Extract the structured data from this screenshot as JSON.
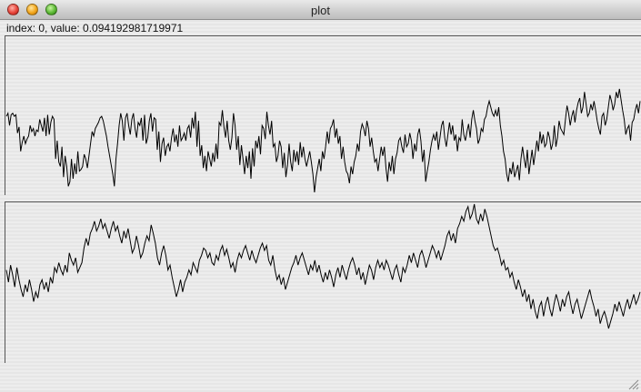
{
  "window": {
    "title": "plot",
    "controls": {
      "close": "close-button",
      "minimize": "minimize-button",
      "zoom": "zoom-button"
    }
  },
  "status": {
    "text": "index: 0, value: 0.094192981719971"
  },
  "plots": {
    "top": {
      "series": [
        0.08,
        0.1,
        0.02,
        0.09,
        0.1,
        0.08,
        0.09,
        -0.03,
        0.01,
        -0.15,
        -0.09,
        -0.05,
        -0.1,
        -0.07,
        -0.05,
        0.02,
        -0.02,
        0.0,
        -0.05,
        -0.01,
        -0.02,
        0.06,
        0.02,
        -0.02,
        0.07,
        -0.05,
        0.09,
        -0.04,
        0.04,
        0.08,
        0.06,
        -0.2,
        -0.08,
        -0.22,
        -0.25,
        -0.12,
        -0.32,
        -0.18,
        -0.25,
        -0.38,
        -0.35,
        -0.2,
        -0.33,
        -0.23,
        -0.3,
        -0.15,
        -0.28,
        -0.27,
        -0.25,
        -0.17,
        -0.2,
        -0.26,
        -0.18,
        -0.1,
        -0.02,
        -0.05,
        0.0,
        0.02,
        0.04,
        0.07,
        0.08,
        0.05,
        0.0,
        -0.05,
        -0.12,
        -0.18,
        -0.24,
        -0.3,
        -0.38,
        -0.2,
        -0.1,
        0.02,
        0.1,
        0.05,
        -0.08,
        0.07,
        0.1,
        0.02,
        -0.04,
        0.06,
        0.1,
        0.0,
        -0.06,
        0.04,
        0.02,
        0.07,
        -0.08,
        0.09,
        -0.1,
        -0.06,
        0.05,
        0.1,
        -0.02,
        0.07,
        0.06,
        -0.14,
        -0.02,
        -0.22,
        -0.1,
        -0.06,
        -0.18,
        -0.12,
        -0.1,
        -0.15,
        -0.06,
        0.0,
        -0.09,
        -0.04,
        -0.12,
        0.02,
        -0.08,
        -0.06,
        -0.03,
        -0.08,
        0.0,
        0.02,
        -0.06,
        0.07,
        0.0,
        0.11,
        -0.12,
        0.05,
        -0.18,
        -0.11,
        -0.26,
        -0.18,
        -0.28,
        -0.15,
        -0.2,
        -0.25,
        -0.16,
        -0.22,
        -0.1,
        -0.2,
        0.04,
        0.02,
        0.12,
        0.01,
        -0.06,
        0.05,
        -0.08,
        -0.14,
        -0.06,
        0.1,
        0.02,
        -0.14,
        -0.05,
        -0.24,
        -0.11,
        -0.2,
        -0.3,
        -0.18,
        -0.26,
        -0.15,
        -0.33,
        -0.13,
        -0.25,
        -0.08,
        -0.13,
        -0.05,
        -0.17,
        0.02,
        0.0,
        -0.07,
        0.11,
        0.02,
        -0.04,
        0.05,
        -0.12,
        -0.1,
        -0.22,
        -0.18,
        -0.08,
        -0.12,
        -0.26,
        -0.16,
        -0.32,
        -0.24,
        -0.1,
        -0.22,
        -0.28,
        -0.14,
        -0.22,
        -0.15,
        -0.24,
        -0.09,
        -0.19,
        -0.12,
        -0.2,
        -0.25,
        -0.2,
        -0.15,
        -0.22,
        -0.3,
        -0.42,
        -0.32,
        -0.26,
        -0.2,
        -0.28,
        -0.15,
        -0.2,
        -0.12,
        -0.02,
        -0.1,
        0.0,
        0.02,
        0.06,
        -0.06,
        0.0,
        -0.1,
        -0.05,
        -0.2,
        -0.12,
        -0.22,
        -0.28,
        -0.3,
        -0.36,
        -0.25,
        -0.3,
        -0.22,
        -0.18,
        -0.1,
        -0.15,
        -0.02,
        0.03,
        0.0,
        -0.05,
        0.05,
        0.0,
        -0.12,
        -0.06,
        -0.15,
        -0.22,
        -0.2,
        -0.28,
        -0.2,
        -0.12,
        -0.18,
        -0.12,
        -0.26,
        -0.35,
        -0.22,
        -0.28,
        -0.18,
        -0.3,
        -0.2,
        -0.16,
        -0.08,
        -0.06,
        -0.12,
        -0.16,
        -0.04,
        -0.12,
        -0.1,
        -0.03,
        -0.08,
        -0.2,
        -0.1,
        -0.15,
        -0.04,
        0.0,
        -0.08,
        -0.22,
        -0.14,
        -0.35,
        -0.28,
        -0.22,
        -0.14,
        -0.08,
        -0.04,
        -0.08,
        -0.02,
        -0.14,
        -0.06,
        0.02,
        0.05,
        -0.06,
        -0.12,
        -0.04,
        0.04,
        -0.04,
        0.02,
        -0.08,
        -0.04,
        -0.15,
        -0.06,
        -0.08,
        0.06,
        -0.04,
        -0.08,
        -0.02,
        0.03,
        -0.06,
        0.06,
        0.12,
        0.05,
        0.0,
        -0.1,
        -0.07,
        0.0,
        -0.02,
        0.06,
        0.08,
        0.14,
        0.18,
        0.14,
        0.1,
        0.08,
        0.12,
        0.08,
        0.14,
        0.02,
        -0.05,
        -0.15,
        -0.2,
        -0.3,
        -0.35,
        -0.26,
        -0.3,
        -0.22,
        -0.32,
        -0.28,
        -0.24,
        -0.34,
        -0.2,
        -0.12,
        -0.2,
        -0.26,
        -0.14,
        -0.3,
        -0.22,
        -0.14,
        -0.24,
        -0.16,
        -0.08,
        -0.15,
        -0.02,
        -0.1,
        -0.04,
        -0.12,
        -0.1,
        -0.02,
        -0.06,
        -0.14,
        -0.1,
        0.02,
        -0.12,
        -0.06,
        0.05,
        0.0,
        -0.02,
        -0.04,
        0.06,
        0.15,
        0.1,
        0.02,
        0.08,
        0.12,
        0.04,
        0.12,
        0.17,
        0.2,
        0.1,
        0.14,
        0.24,
        0.16,
        0.08,
        0.1,
        0.16,
        0.12,
        0.18,
        0.12,
        0.05,
        0.0,
        -0.04,
        0.08,
        0.1,
        0.02,
        0.06,
        0.14,
        0.22,
        0.18,
        0.12,
        0.16,
        0.24,
        0.2,
        0.26,
        0.19,
        0.12,
        0.06,
        -0.04,
        0.0,
        0.02,
        -0.08,
        0.04,
        0.06,
        0.12,
        0.16,
        0.1,
        0.18
      ]
    },
    "bottom": {
      "series": [
        -0.22,
        -0.32,
        -0.18,
        -0.26,
        -0.36,
        -0.2,
        -0.3,
        -0.38,
        -0.44,
        -0.34,
        -0.4,
        -0.3,
        -0.38,
        -0.48,
        -0.4,
        -0.45,
        -0.34,
        -0.3,
        -0.38,
        -0.32,
        -0.4,
        -0.28,
        -0.33,
        -0.2,
        -0.24,
        -0.16,
        -0.22,
        -0.26,
        -0.18,
        -0.24,
        -0.08,
        -0.14,
        -0.18,
        -0.12,
        -0.24,
        -0.2,
        -0.16,
        -0.04,
        0.04,
        -0.02,
        0.08,
        0.12,
        0.18,
        0.1,
        0.14,
        0.2,
        0.12,
        0.16,
        0.1,
        0.04,
        0.12,
        0.18,
        0.1,
        0.14,
        0.06,
        0.0,
        0.1,
        0.04,
        0.12,
        0.02,
        -0.08,
        -0.04,
        0.06,
        -0.02,
        -0.12,
        -0.08,
        0.0,
        0.06,
        0.02,
        0.15,
        0.08,
        0.0,
        -0.12,
        -0.18,
        -0.08,
        -0.02,
        -0.1,
        -0.22,
        -0.18,
        -0.28,
        -0.36,
        -0.44,
        -0.38,
        -0.3,
        -0.4,
        -0.32,
        -0.28,
        -0.22,
        -0.26,
        -0.16,
        -0.2,
        -0.24,
        -0.14,
        -0.1,
        -0.04,
        -0.06,
        -0.12,
        -0.08,
        -0.16,
        -0.18,
        -0.1,
        -0.14,
        -0.06,
        -0.02,
        -0.1,
        -0.05,
        -0.12,
        -0.2,
        -0.16,
        -0.24,
        -0.14,
        -0.08,
        -0.12,
        -0.06,
        -0.02,
        -0.08,
        -0.14,
        -0.06,
        -0.12,
        -0.16,
        -0.1,
        -0.04,
        0.0,
        -0.06,
        -0.02,
        -0.14,
        -0.18,
        -0.1,
        -0.22,
        -0.3,
        -0.26,
        -0.34,
        -0.28,
        -0.38,
        -0.32,
        -0.26,
        -0.2,
        -0.16,
        -0.1,
        -0.18,
        -0.12,
        -0.08,
        -0.14,
        -0.2,
        -0.26,
        -0.18,
        -0.22,
        -0.14,
        -0.24,
        -0.18,
        -0.26,
        -0.32,
        -0.24,
        -0.3,
        -0.22,
        -0.28,
        -0.36,
        -0.26,
        -0.2,
        -0.28,
        -0.18,
        -0.24,
        -0.3,
        -0.22,
        -0.16,
        -0.12,
        -0.18,
        -0.26,
        -0.2,
        -0.3,
        -0.24,
        -0.34,
        -0.26,
        -0.18,
        -0.22,
        -0.3,
        -0.2,
        -0.14,
        -0.2,
        -0.16,
        -0.22,
        -0.14,
        -0.18,
        -0.24,
        -0.3,
        -0.22,
        -0.18,
        -0.26,
        -0.32,
        -0.2,
        -0.24,
        -0.18,
        -0.1,
        -0.16,
        -0.08,
        -0.14,
        -0.2,
        -0.1,
        -0.06,
        -0.12,
        -0.2,
        -0.14,
        -0.08,
        -0.02,
        -0.06,
        -0.12,
        -0.06,
        -0.14,
        -0.08,
        -0.02,
        0.06,
        0.1,
        0.02,
        0.08,
        0.0,
        0.12,
        0.16,
        0.22,
        0.18,
        0.26,
        0.3,
        0.2,
        0.24,
        0.32,
        0.2,
        0.16,
        0.24,
        0.18,
        0.28,
        0.22,
        0.14,
        0.06,
        -0.02,
        -0.06,
        -0.04,
        -0.1,
        -0.18,
        -0.14,
        -0.22,
        -0.2,
        -0.28,
        -0.24,
        -0.32,
        -0.38,
        -0.3,
        -0.36,
        -0.44,
        -0.38,
        -0.48,
        -0.42,
        -0.54,
        -0.46,
        -0.56,
        -0.62,
        -0.52,
        -0.48,
        -0.6,
        -0.5,
        -0.44,
        -0.54,
        -0.6,
        -0.5,
        -0.42,
        -0.48,
        -0.56,
        -0.46,
        -0.52,
        -0.44,
        -0.4,
        -0.5,
        -0.58,
        -0.5,
        -0.46,
        -0.54,
        -0.62,
        -0.56,
        -0.5,
        -0.44,
        -0.38,
        -0.46,
        -0.52,
        -0.6,
        -0.54,
        -0.66,
        -0.6,
        -0.56,
        -0.62,
        -0.7,
        -0.64,
        -0.58,
        -0.5,
        -0.56,
        -0.48,
        -0.54,
        -0.6,
        -0.52,
        -0.46,
        -0.54,
        -0.48,
        -0.42,
        -0.5,
        -0.46,
        -0.4
      ]
    }
  }
}
